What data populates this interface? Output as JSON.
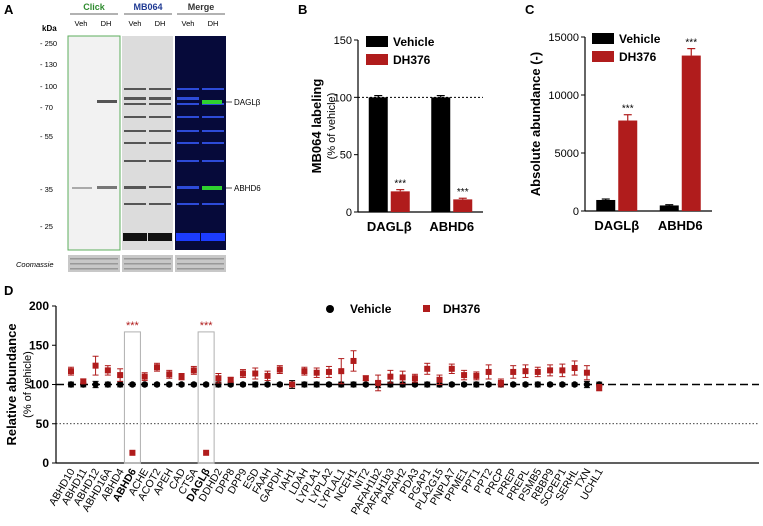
{
  "panels": {
    "A": "A",
    "B": "B",
    "C": "C",
    "D": "D"
  },
  "blot": {
    "kda_label": "kDa",
    "markers": [
      "250",
      "130",
      "100",
      "70",
      "55",
      "35",
      "25"
    ],
    "marker_values_kda": [
      250,
      130,
      100,
      70,
      55,
      35,
      25
    ],
    "lane_groups": [
      {
        "title": "Click",
        "color": "#2e8b2e",
        "lanes": [
          "Veh",
          "DH"
        ]
      },
      {
        "title": "MB064",
        "color": "#1f3a93",
        "lanes": [
          "Veh",
          "DH"
        ]
      },
      {
        "title": "Merge",
        "color": "#333333",
        "lanes": [
          "Veh",
          "DH"
        ]
      }
    ],
    "band_labels": [
      "DAGLβ",
      "ABHD6"
    ],
    "coomassie_label": "Coomassie"
  },
  "chart_data": [
    {
      "panel": "B",
      "type": "bar",
      "title": "",
      "xlabel": "",
      "ylabel": "MB064 labeling",
      "ylabel2": "(% of vehicle)",
      "categories": [
        "DAGLβ",
        "ABHD6"
      ],
      "series": [
        {
          "name": "Vehicle",
          "color": "#000000",
          "values": [
            100,
            100
          ],
          "errors": [
            1.5,
            1.5
          ]
        },
        {
          "name": "DH376",
          "color": "#b01c1c",
          "values": [
            18,
            11
          ],
          "errors": [
            1.5,
            1
          ]
        }
      ],
      "ylim": [
        0,
        150
      ],
      "yticks": [
        0,
        50,
        100,
        150
      ],
      "reference_line": 100,
      "significance": [
        "***",
        "***"
      ],
      "legend": "top-right"
    },
    {
      "panel": "C",
      "type": "bar",
      "title": "",
      "xlabel": "",
      "ylabel": "Absolute abundance (-)",
      "categories": [
        "DAGLβ",
        "ABHD6"
      ],
      "series": [
        {
          "name": "Vehicle",
          "color": "#000000",
          "values": [
            950,
            480
          ],
          "errors": [
            80,
            60
          ]
        },
        {
          "name": "DH376",
          "color": "#b01c1c",
          "values": [
            7800,
            13400
          ],
          "errors": [
            500,
            600
          ]
        }
      ],
      "ylim": [
        0,
        15000
      ],
      "yticks": [
        0,
        5000,
        10000,
        15000
      ],
      "significance": [
        "***",
        "***"
      ],
      "legend": "top-left"
    },
    {
      "panel": "D",
      "type": "scatter",
      "title": "",
      "xlabel": "",
      "ylabel": "Relative abundance",
      "ylabel2": "(% of vehicle)",
      "categories": [
        "ABHD10",
        "ABHD11",
        "ABHD12",
        "ABHD16A",
        "ABHD4",
        "ABHD6",
        "ACHE",
        "ACOT2",
        "APEH",
        "CAD",
        "CTSA",
        "DAGLβ",
        "DDHD2",
        "DPP8",
        "DPP9",
        "ESD",
        "FAAH",
        "GAPDH",
        "IAH1",
        "LDAH",
        "LYPLA1",
        "LYPLA2",
        "LYPLAL1",
        "NCEH1",
        "NIT2",
        "PAFAH1b2",
        "PAFAH1b3",
        "PAFAH2",
        "PDA3",
        "PGAP1",
        "PLA2G15",
        "PNPLA7",
        "PPME1",
        "PPT1",
        "PPT2",
        "PRCP",
        "PREP",
        "PREPL",
        "PSMB5",
        "RBBP9",
        "SCPEP1",
        "SERHL",
        "TXN",
        "UCHL1"
      ],
      "bold_categories": [
        "ABHD6",
        "DAGLβ"
      ],
      "highlight_boxes": [
        "ABHD6",
        "DAGLβ"
      ],
      "highlight_labels": [
        "***",
        "***"
      ],
      "series": [
        {
          "name": "Vehicle",
          "color": "#000000",
          "marker": "circle",
          "values": [
            100,
            100,
            100,
            100,
            100,
            100,
            100,
            100,
            100,
            100,
            100,
            100,
            100,
            100,
            100,
            100,
            100,
            100,
            100,
            100,
            100,
            100,
            100,
            100,
            100,
            100,
            100,
            100,
            100,
            100,
            100,
            100,
            100,
            100,
            100,
            100,
            100,
            100,
            100,
            100,
            100,
            100,
            100,
            100
          ],
          "errors": [
            3,
            3,
            4,
            3,
            3,
            2,
            2,
            2,
            2,
            2,
            2,
            2,
            3,
            2,
            2,
            3,
            2,
            2,
            5,
            3,
            3,
            2,
            3,
            3,
            2,
            4,
            3,
            3,
            2,
            3,
            3,
            2,
            2,
            3,
            2,
            3,
            2,
            2,
            3,
            2,
            2,
            2,
            4,
            3
          ]
        },
        {
          "name": "DH376",
          "color": "#b01c1c",
          "marker": "square",
          "values": [
            117,
            104,
            124,
            118,
            112,
            13,
            110,
            122,
            113,
            110,
            118,
            13,
            108,
            106,
            114,
            114,
            111,
            119,
            100,
            117,
            115,
            116,
            117,
            130,
            108,
            102,
            110,
            109,
            108,
            120,
            106,
            120,
            112,
            111,
            116,
            102,
            116,
            117,
            116,
            118,
            118,
            121,
            115,
            96
          ],
          "errors": [
            5,
            3,
            12,
            6,
            8,
            1,
            5,
            5,
            5,
            4,
            5,
            1,
            6,
            3,
            5,
            7,
            6,
            5,
            3,
            5,
            6,
            7,
            16,
            13,
            3,
            10,
            8,
            8,
            5,
            7,
            6,
            6,
            6,
            5,
            9,
            5,
            8,
            8,
            6,
            7,
            8,
            9,
            9,
            4
          ]
        }
      ],
      "ylim": [
        0,
        200
      ],
      "yticks": [
        0,
        50,
        100,
        150,
        200
      ],
      "reference_lines": [
        100,
        50
      ],
      "legend": "top-center"
    }
  ]
}
